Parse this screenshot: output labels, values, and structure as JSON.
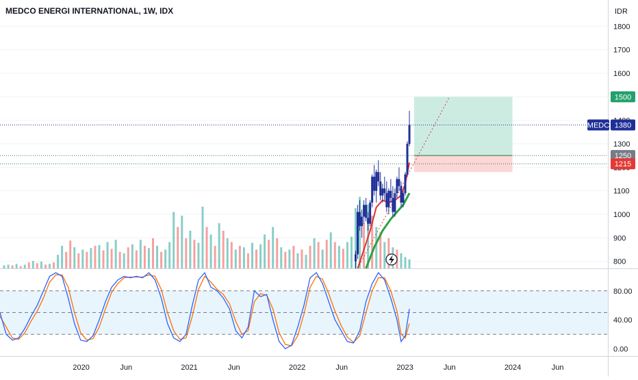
{
  "window": {
    "title": "MEDCO ENERGI INTERNATIONAL, 1W, IDX",
    "currency": "IDR"
  },
  "price_scale": {
    "ticks": [
      "1800",
      "1700",
      "1600",
      "1500",
      "1400",
      "1300",
      "1200",
      "1100",
      "1000",
      "900",
      "800"
    ]
  },
  "osc_scale": {
    "ticks": [
      "80.00",
      "40.00",
      "0.00"
    ]
  },
  "time_axis": {
    "ticks": [
      "2020",
      "Jun",
      "2021",
      "Jun",
      "2022",
      "Jun",
      "2023",
      "Jun",
      "2024",
      "Jun"
    ]
  },
  "badges": {
    "target": "1500",
    "symbol": "MEDC",
    "last": "1380",
    "entry": "1250",
    "stop": "1215"
  },
  "colors": {
    "up": "#26a69a",
    "down": "#ef5350",
    "candle": "#1e2f97",
    "line_red": "#e62e2e",
    "line_green": "#2ea043",
    "stoch_k": "#2962ff",
    "stoch_d": "#ff6d00",
    "target_zone": "#b7e4d6",
    "stop_zone": "#fbd0d0",
    "badge_green": "#22a06b",
    "badge_gray": "#787b86",
    "badge_red": "#e53935",
    "badge_navy": "#1e2f97"
  },
  "chart_data": {
    "type": "candlestick",
    "title": "MEDCO ENERGI INTERNATIONAL, 1W, IDX",
    "price_ylim": [
      770,
      1830
    ],
    "osc_ylim": [
      -10,
      110
    ],
    "levels": {
      "last": 1380,
      "entry": 1250,
      "stop": 1215,
      "target": 1500
    },
    "position": {
      "start": "2023-02-01",
      "end": "2023-12-31",
      "entry": 1250,
      "target": 1500,
      "stop": 1215
    },
    "trend_line": [
      [
        "2022-07-25",
        770
      ],
      [
        "2023-06-01",
        1500
      ]
    ],
    "candles": [
      [
        "2022-07-18",
        800,
        845,
        770,
        830
      ],
      [
        "2022-07-25",
        830,
        1040,
        810,
        1010
      ],
      [
        "2022-08-01",
        1010,
        1060,
        930,
        950
      ],
      [
        "2022-08-08",
        950,
        1020,
        900,
        990
      ],
      [
        "2022-08-15",
        990,
        1060,
        960,
        1040
      ],
      [
        "2022-08-22",
        1040,
        1070,
        970,
        985
      ],
      [
        "2022-08-29",
        985,
        1010,
        930,
        960
      ],
      [
        "2022-09-05",
        960,
        1060,
        950,
        1050
      ],
      [
        "2022-09-12",
        1050,
        1170,
        1030,
        1160
      ],
      [
        "2022-09-19",
        1160,
        1210,
        1080,
        1100
      ],
      [
        "2022-09-26",
        1100,
        1190,
        1050,
        1180
      ],
      [
        "2022-10-03",
        1180,
        1230,
        1120,
        1140
      ],
      [
        "2022-10-10",
        1140,
        1180,
        1060,
        1080
      ],
      [
        "2022-10-17",
        1080,
        1130,
        1050,
        1110
      ],
      [
        "2022-10-24",
        1110,
        1160,
        1060,
        1090
      ],
      [
        "2022-10-31",
        1090,
        1140,
        1010,
        1030
      ],
      [
        "2022-11-07",
        1030,
        1110,
        1000,
        1100
      ],
      [
        "2022-11-14",
        1100,
        1150,
        1050,
        1070
      ],
      [
        "2022-11-21",
        1070,
        1120,
        990,
        1010
      ],
      [
        "2022-11-28",
        1010,
        1110,
        990,
        1090
      ],
      [
        "2022-12-05",
        1090,
        1160,
        1070,
        1150
      ],
      [
        "2022-12-12",
        1150,
        1200,
        1100,
        1120
      ],
      [
        "2022-12-19",
        1120,
        1140,
        1030,
        1050
      ],
      [
        "2022-12-26",
        1050,
        1100,
        1030,
        1090
      ],
      [
        "2023-01-02",
        1090,
        1180,
        1080,
        1170
      ],
      [
        "2023-01-09",
        1170,
        1310,
        1160,
        1300
      ],
      [
        "2023-01-16",
        1300,
        1440,
        1290,
        1380
      ]
    ],
    "ema_red": [
      [
        "2022-07-25",
        770
      ],
      [
        "2022-08-15",
        850
      ],
      [
        "2022-09-05",
        930
      ],
      [
        "2022-09-26",
        1030
      ],
      [
        "2022-10-17",
        1060
      ],
      [
        "2022-11-07",
        1050
      ],
      [
        "2022-11-28",
        1060
      ],
      [
        "2022-12-19",
        1080
      ],
      [
        "2023-01-02",
        1130
      ],
      [
        "2023-01-16",
        1220
      ]
    ],
    "ema_green": [
      [
        "2022-08-22",
        770
      ],
      [
        "2022-09-19",
        860
      ],
      [
        "2022-10-17",
        930
      ],
      [
        "2022-11-14",
        980
      ],
      [
        "2022-12-05",
        1010
      ],
      [
        "2022-12-26",
        1040
      ],
      [
        "2023-01-16",
        1090
      ]
    ],
    "volume_max": 100,
    "volume": [
      [
        "2019-04-15",
        4,
        1
      ],
      [
        "2019-04-29",
        5,
        1
      ],
      [
        "2019-05-13",
        4,
        0
      ],
      [
        "2019-05-27",
        6,
        1
      ],
      [
        "2019-06-10",
        3,
        0
      ],
      [
        "2019-06-24",
        5,
        1
      ],
      [
        "2019-07-08",
        8,
        0
      ],
      [
        "2019-07-22",
        10,
        1
      ],
      [
        "2019-08-05",
        7,
        0
      ],
      [
        "2019-08-19",
        9,
        1
      ],
      [
        "2019-09-02",
        5,
        0
      ],
      [
        "2019-09-16",
        6,
        1
      ],
      [
        "2019-09-30",
        8,
        0
      ],
      [
        "2019-10-14",
        18,
        1
      ],
      [
        "2019-10-28",
        30,
        1
      ],
      [
        "2019-11-11",
        22,
        0
      ],
      [
        "2019-11-25",
        37,
        0
      ],
      [
        "2019-12-09",
        28,
        1
      ],
      [
        "2019-12-23",
        20,
        0
      ],
      [
        "2020-01-06",
        25,
        1
      ],
      [
        "2020-01-20",
        22,
        0
      ],
      [
        "2020-02-03",
        27,
        1
      ],
      [
        "2020-02-17",
        30,
        0
      ],
      [
        "2020-03-02",
        31,
        1
      ],
      [
        "2020-03-16",
        24,
        0
      ],
      [
        "2020-03-30",
        35,
        1
      ],
      [
        "2020-04-13",
        26,
        0
      ],
      [
        "2020-04-27",
        38,
        1
      ],
      [
        "2020-05-11",
        22,
        0
      ],
      [
        "2020-05-25",
        20,
        1
      ],
      [
        "2020-06-08",
        28,
        0
      ],
      [
        "2020-06-22",
        32,
        1
      ],
      [
        "2020-07-06",
        24,
        0
      ],
      [
        "2020-07-20",
        38,
        1
      ],
      [
        "2020-08-03",
        30,
        0
      ],
      [
        "2020-08-17",
        27,
        1
      ],
      [
        "2020-08-31",
        40,
        0
      ],
      [
        "2020-09-14",
        30,
        1
      ],
      [
        "2020-09-28",
        22,
        0
      ],
      [
        "2020-10-12",
        25,
        1
      ],
      [
        "2020-10-26",
        35,
        1
      ],
      [
        "2020-11-09",
        75,
        1
      ],
      [
        "2020-11-23",
        55,
        0
      ],
      [
        "2020-12-07",
        70,
        1
      ],
      [
        "2020-12-21",
        40,
        0
      ],
      [
        "2021-01-04",
        50,
        1
      ],
      [
        "2021-01-18",
        38,
        0
      ],
      [
        "2021-02-01",
        34,
        1
      ],
      [
        "2021-02-15",
        82,
        1
      ],
      [
        "2021-03-01",
        55,
        0
      ],
      [
        "2021-03-15",
        45,
        1
      ],
      [
        "2021-03-29",
        30,
        0
      ],
      [
        "2021-04-12",
        60,
        1
      ],
      [
        "2021-04-26",
        50,
        0
      ],
      [
        "2021-05-10",
        40,
        1
      ],
      [
        "2021-05-24",
        35,
        0
      ],
      [
        "2021-06-07",
        25,
        1
      ],
      [
        "2021-06-21",
        30,
        0
      ],
      [
        "2021-07-05",
        28,
        1
      ],
      [
        "2021-07-19",
        20,
        0
      ],
      [
        "2021-08-02",
        34,
        1
      ],
      [
        "2021-08-16",
        25,
        0
      ],
      [
        "2021-08-30",
        32,
        1
      ],
      [
        "2021-09-13",
        45,
        1
      ],
      [
        "2021-09-27",
        38,
        0
      ],
      [
        "2021-10-11",
        55,
        1
      ],
      [
        "2021-10-25",
        40,
        0
      ],
      [
        "2021-11-08",
        28,
        1
      ],
      [
        "2021-11-22",
        22,
        0
      ],
      [
        "2021-12-06",
        25,
        1
      ],
      [
        "2021-12-20",
        30,
        0
      ],
      [
        "2022-01-03",
        20,
        1
      ],
      [
        "2022-01-17",
        25,
        0
      ],
      [
        "2022-01-31",
        18,
        1
      ],
      [
        "2022-02-14",
        30,
        0
      ],
      [
        "2022-02-28",
        40,
        1
      ],
      [
        "2022-03-14",
        35,
        0
      ],
      [
        "2022-03-28",
        25,
        1
      ],
      [
        "2022-04-11",
        38,
        0
      ],
      [
        "2022-04-25",
        48,
        1
      ],
      [
        "2022-05-09",
        35,
        0
      ],
      [
        "2022-05-23",
        30,
        1
      ],
      [
        "2022-06-06",
        26,
        0
      ],
      [
        "2022-06-20",
        35,
        1
      ],
      [
        "2022-07-04",
        42,
        1
      ],
      [
        "2022-07-18",
        80,
        1
      ],
      [
        "2022-08-01",
        95,
        1
      ],
      [
        "2022-08-15",
        60,
        0
      ],
      [
        "2022-08-29",
        85,
        1
      ],
      [
        "2022-09-12",
        70,
        0
      ],
      [
        "2022-09-26",
        55,
        1
      ],
      [
        "2022-10-10",
        48,
        0
      ],
      [
        "2022-10-24",
        35,
        1
      ],
      [
        "2022-11-07",
        40,
        0
      ],
      [
        "2022-11-21",
        28,
        1
      ],
      [
        "2022-12-05",
        25,
        0
      ],
      [
        "2022-12-19",
        20,
        1
      ],
      [
        "2023-01-02",
        15,
        1
      ],
      [
        "2023-01-16",
        12,
        1
      ]
    ],
    "stoch_k": [
      [
        "2019-04-01",
        50
      ],
      [
        "2019-04-22",
        20
      ],
      [
        "2019-05-13",
        12
      ],
      [
        "2019-06-03",
        15
      ],
      [
        "2019-06-24",
        28
      ],
      [
        "2019-07-15",
        45
      ],
      [
        "2019-08-05",
        60
      ],
      [
        "2019-08-26",
        80
      ],
      [
        "2019-09-16",
        100
      ],
      [
        "2019-10-07",
        105
      ],
      [
        "2019-10-28",
        100
      ],
      [
        "2019-11-18",
        70
      ],
      [
        "2019-12-09",
        35
      ],
      [
        "2019-12-30",
        12
      ],
      [
        "2020-01-20",
        10
      ],
      [
        "2020-02-10",
        18
      ],
      [
        "2020-03-02",
        40
      ],
      [
        "2020-03-23",
        65
      ],
      [
        "2020-04-13",
        85
      ],
      [
        "2020-05-04",
        95
      ],
      [
        "2020-05-25",
        100
      ],
      [
        "2020-06-15",
        98
      ],
      [
        "2020-07-06",
        100
      ],
      [
        "2020-07-27",
        98
      ],
      [
        "2020-08-17",
        105
      ],
      [
        "2020-09-07",
        95
      ],
      [
        "2020-09-28",
        70
      ],
      [
        "2020-10-19",
        35
      ],
      [
        "2020-11-09",
        15
      ],
      [
        "2020-11-30",
        10
      ],
      [
        "2020-12-21",
        20
      ],
      [
        "2021-01-11",
        60
      ],
      [
        "2021-02-01",
        95
      ],
      [
        "2021-02-22",
        105
      ],
      [
        "2021-03-15",
        85
      ],
      [
        "2021-04-05",
        80
      ],
      [
        "2021-04-26",
        70
      ],
      [
        "2021-05-17",
        55
      ],
      [
        "2021-06-07",
        25
      ],
      [
        "2021-06-28",
        15
      ],
      [
        "2021-07-19",
        30
      ],
      [
        "2021-08-09",
        80
      ],
      [
        "2021-08-30",
        72
      ],
      [
        "2021-09-20",
        75
      ],
      [
        "2021-10-11",
        40
      ],
      [
        "2021-11-01",
        10
      ],
      [
        "2021-11-22",
        0
      ],
      [
        "2021-12-13",
        5
      ],
      [
        "2022-01-03",
        30
      ],
      [
        "2022-01-24",
        60
      ],
      [
        "2022-02-14",
        98
      ],
      [
        "2022-03-07",
        105
      ],
      [
        "2022-03-28",
        90
      ],
      [
        "2022-04-18",
        65
      ],
      [
        "2022-05-09",
        40
      ],
      [
        "2022-05-30",
        25
      ],
      [
        "2022-06-20",
        10
      ],
      [
        "2022-07-11",
        8
      ],
      [
        "2022-08-01",
        25
      ],
      [
        "2022-08-22",
        65
      ],
      [
        "2022-09-12",
        90
      ],
      [
        "2022-10-03",
        105
      ],
      [
        "2022-10-24",
        95
      ],
      [
        "2022-11-14",
        70
      ],
      [
        "2022-12-05",
        40
      ],
      [
        "2022-12-19",
        10
      ],
      [
        "2023-01-02",
        18
      ],
      [
        "2023-01-16",
        55
      ]
    ],
    "stoch_d": [
      [
        "2019-04-01",
        45
      ],
      [
        "2019-04-22",
        30
      ],
      [
        "2019-05-13",
        15
      ],
      [
        "2019-06-03",
        13
      ],
      [
        "2019-06-24",
        22
      ],
      [
        "2019-07-15",
        38
      ],
      [
        "2019-08-05",
        52
      ],
      [
        "2019-08-26",
        70
      ],
      [
        "2019-09-16",
        92
      ],
      [
        "2019-10-07",
        102
      ],
      [
        "2019-10-28",
        102
      ],
      [
        "2019-11-18",
        85
      ],
      [
        "2019-12-09",
        50
      ],
      [
        "2019-12-30",
        22
      ],
      [
        "2020-01-20",
        12
      ],
      [
        "2020-02-10",
        14
      ],
      [
        "2020-03-02",
        30
      ],
      [
        "2020-03-23",
        55
      ],
      [
        "2020-04-13",
        78
      ],
      [
        "2020-05-04",
        90
      ],
      [
        "2020-05-25",
        98
      ],
      [
        "2020-06-15",
        99
      ],
      [
        "2020-07-06",
        99
      ],
      [
        "2020-07-27",
        99
      ],
      [
        "2020-08-17",
        102
      ],
      [
        "2020-09-07",
        100
      ],
      [
        "2020-09-28",
        82
      ],
      [
        "2020-10-19",
        50
      ],
      [
        "2020-11-09",
        25
      ],
      [
        "2020-11-30",
        13
      ],
      [
        "2020-12-21",
        15
      ],
      [
        "2021-01-11",
        45
      ],
      [
        "2021-02-01",
        82
      ],
      [
        "2021-02-22",
        100
      ],
      [
        "2021-03-15",
        92
      ],
      [
        "2021-04-05",
        82
      ],
      [
        "2021-04-26",
        75
      ],
      [
        "2021-05-17",
        62
      ],
      [
        "2021-06-07",
        38
      ],
      [
        "2021-06-28",
        20
      ],
      [
        "2021-07-19",
        25
      ],
      [
        "2021-08-09",
        65
      ],
      [
        "2021-08-30",
        76
      ],
      [
        "2021-09-20",
        74
      ],
      [
        "2021-10-11",
        55
      ],
      [
        "2021-11-01",
        22
      ],
      [
        "2021-11-22",
        6
      ],
      [
        "2021-12-13",
        4
      ],
      [
        "2022-01-03",
        18
      ],
      [
        "2022-01-24",
        48
      ],
      [
        "2022-02-14",
        85
      ],
      [
        "2022-03-07",
        100
      ],
      [
        "2022-03-28",
        96
      ],
      [
        "2022-04-18",
        76
      ],
      [
        "2022-05-09",
        52
      ],
      [
        "2022-05-30",
        32
      ],
      [
        "2022-06-20",
        16
      ],
      [
        "2022-07-11",
        9
      ],
      [
        "2022-08-01",
        18
      ],
      [
        "2022-08-22",
        50
      ],
      [
        "2022-09-12",
        80
      ],
      [
        "2022-10-03",
        98
      ],
      [
        "2022-10-24",
        98
      ],
      [
        "2022-11-14",
        80
      ],
      [
        "2022-12-05",
        52
      ],
      [
        "2022-12-19",
        20
      ],
      [
        "2023-01-02",
        15
      ],
      [
        "2023-01-16",
        35
      ]
    ],
    "osc_band": [
      20,
      80
    ],
    "osc_mid": 50
  }
}
